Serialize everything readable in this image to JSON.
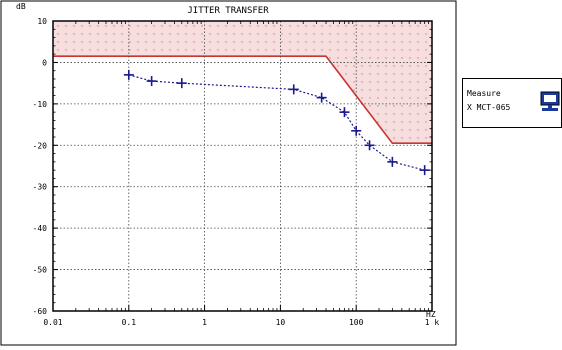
{
  "chart_data": {
    "type": "line",
    "title": "JITTER TRANSFER",
    "y_unit_label": "dB",
    "x_unit_label": "HZ",
    "x_scale": "log",
    "xlim": [
      0.01,
      1000
    ],
    "ylim": [
      -60,
      10
    ],
    "x_ticks": [
      {
        "value": 0.01,
        "label": "0.01"
      },
      {
        "value": 0.1,
        "label": "0.1"
      },
      {
        "value": 1,
        "label": "1"
      },
      {
        "value": 10,
        "label": "10"
      },
      {
        "value": 100,
        "label": "100"
      },
      {
        "value": 1000,
        "label": "1 k"
      }
    ],
    "y_ticks": [
      {
        "value": 10,
        "label": "10"
      },
      {
        "value": 0,
        "label": "0"
      },
      {
        "value": -10,
        "label": "-10"
      },
      {
        "value": -20,
        "label": "-20"
      },
      {
        "value": -30,
        "label": "-30"
      },
      {
        "value": -40,
        "label": "-40"
      },
      {
        "value": -50,
        "label": "-50"
      },
      {
        "value": -60,
        "label": "-60"
      }
    ],
    "grid": true,
    "legend_position": "right",
    "mask": {
      "x": [
        0.01,
        40,
        300,
        1000
      ],
      "y": [
        1.5,
        1.5,
        -19.5,
        -19.5
      ],
      "fill_color": "#f6dede",
      "line_color": "#cc3333"
    },
    "series": [
      {
        "color": "#1a1a8c",
        "x": [
          0.1,
          0.2,
          0.5,
          15,
          35,
          70,
          100,
          150,
          300,
          800
        ],
        "y": [
          -3,
          -4.5,
          -5,
          -6.5,
          -8.5,
          -12,
          -16.5,
          -20,
          -24,
          -26
        ]
      }
    ]
  },
  "legend": {
    "line1": "Measure",
    "line2": "X MCT-065",
    "icon": "monitor-icon"
  }
}
